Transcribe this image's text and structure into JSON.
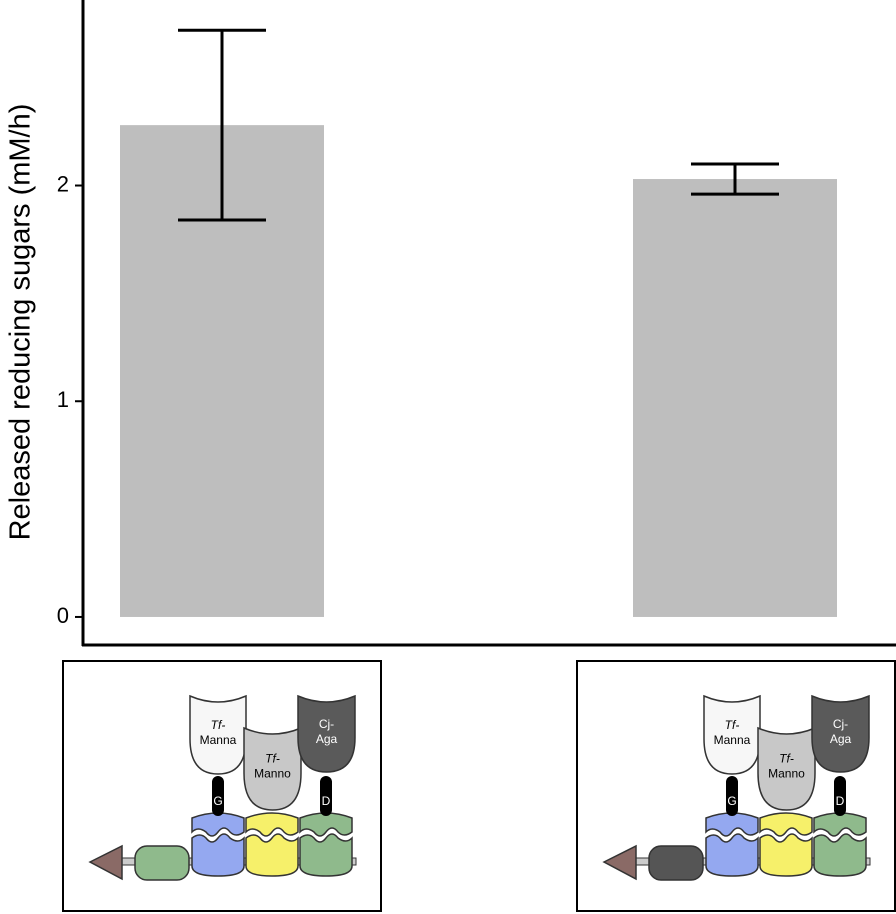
{
  "chart_data": {
    "type": "bar",
    "y_label": "Released reducing sugars (mM/h)",
    "categories": [
      null,
      null
    ],
    "values": [
      2.28,
      2.03
    ],
    "errors": [
      0.44,
      0.07
    ],
    "color": "#bebebe",
    "ylim": [
      -0.13,
      2.86
    ],
    "yticks": [
      0,
      1,
      2
    ],
    "diagrams": [
      {
        "enzymes": [
          {
            "prefix": "Tf-",
            "name": "Manna"
          },
          {
            "prefix": "Tf-",
            "name": "Manno"
          },
          {
            "prefix": "Cj-",
            "name": "Aga"
          }
        ],
        "dockerins": [
          "G",
          "D"
        ]
      },
      {
        "enzymes": [
          {
            "prefix": "Tf-",
            "name": "Manna"
          },
          {
            "prefix": "Tf-",
            "name": "Manno"
          },
          {
            "prefix": "Cj-",
            "name": "Aga"
          }
        ],
        "dockerins": [
          "G",
          "D"
        ]
      }
    ]
  }
}
